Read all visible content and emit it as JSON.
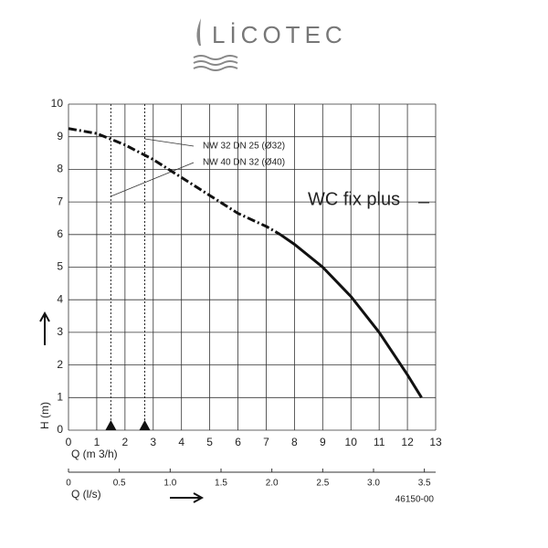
{
  "logo": "LİCOTEC",
  "chart_data": {
    "type": "line",
    "x": [
      0,
      1,
      2,
      3,
      4,
      5,
      6,
      7,
      7.5,
      8,
      9,
      10,
      11,
      12,
      12.5
    ],
    "series": [
      {
        "color": "#111111",
        "dash": true,
        "values": [
          9.25,
          9.1,
          8.75,
          8.3,
          7.75,
          7.2,
          6.65,
          6.25,
          6.0,
          null,
          null,
          null,
          null,
          null,
          null
        ]
      },
      {
        "color": "#111111",
        "dash": false,
        "values": [
          null,
          null,
          null,
          null,
          null,
          null,
          null,
          null,
          6.0,
          5.7,
          5.0,
          4.1,
          3.0,
          1.7,
          1.0
        ]
      }
    ],
    "xlim": [
      0,
      13
    ],
    "xticks": [
      0,
      1,
      2,
      3,
      4,
      5,
      6,
      7,
      8,
      9,
      10,
      11,
      12,
      13
    ],
    "ylim": [
      0,
      10
    ],
    "yticks": [
      0,
      1,
      2,
      3,
      4,
      5,
      6,
      7,
      8,
      9,
      10
    ],
    "x2lim": [
      0,
      3.611
    ],
    "x2ticks": [
      0,
      0.5,
      {
        "value": 1,
        "label": "1.0"
      },
      1.5,
      {
        "value": 2,
        "label": "2.0"
      },
      2.5,
      {
        "value": 3,
        "label": "3.0"
      },
      3.5
    ],
    "grid": true,
    "ylabel": "H (m)",
    "xlabel": "Q (m 3/h)",
    "x2label": "Q (l/s)",
    "reference_lines": [
      {
        "x": 2.7,
        "label": "NW 32  DN 25 (Ø32)"
      },
      {
        "x": 1.5,
        "label": "NW 40  DN 32 (Ø40)"
      }
    ],
    "annotation": "WC fix plus",
    "code": "46150-00"
  }
}
